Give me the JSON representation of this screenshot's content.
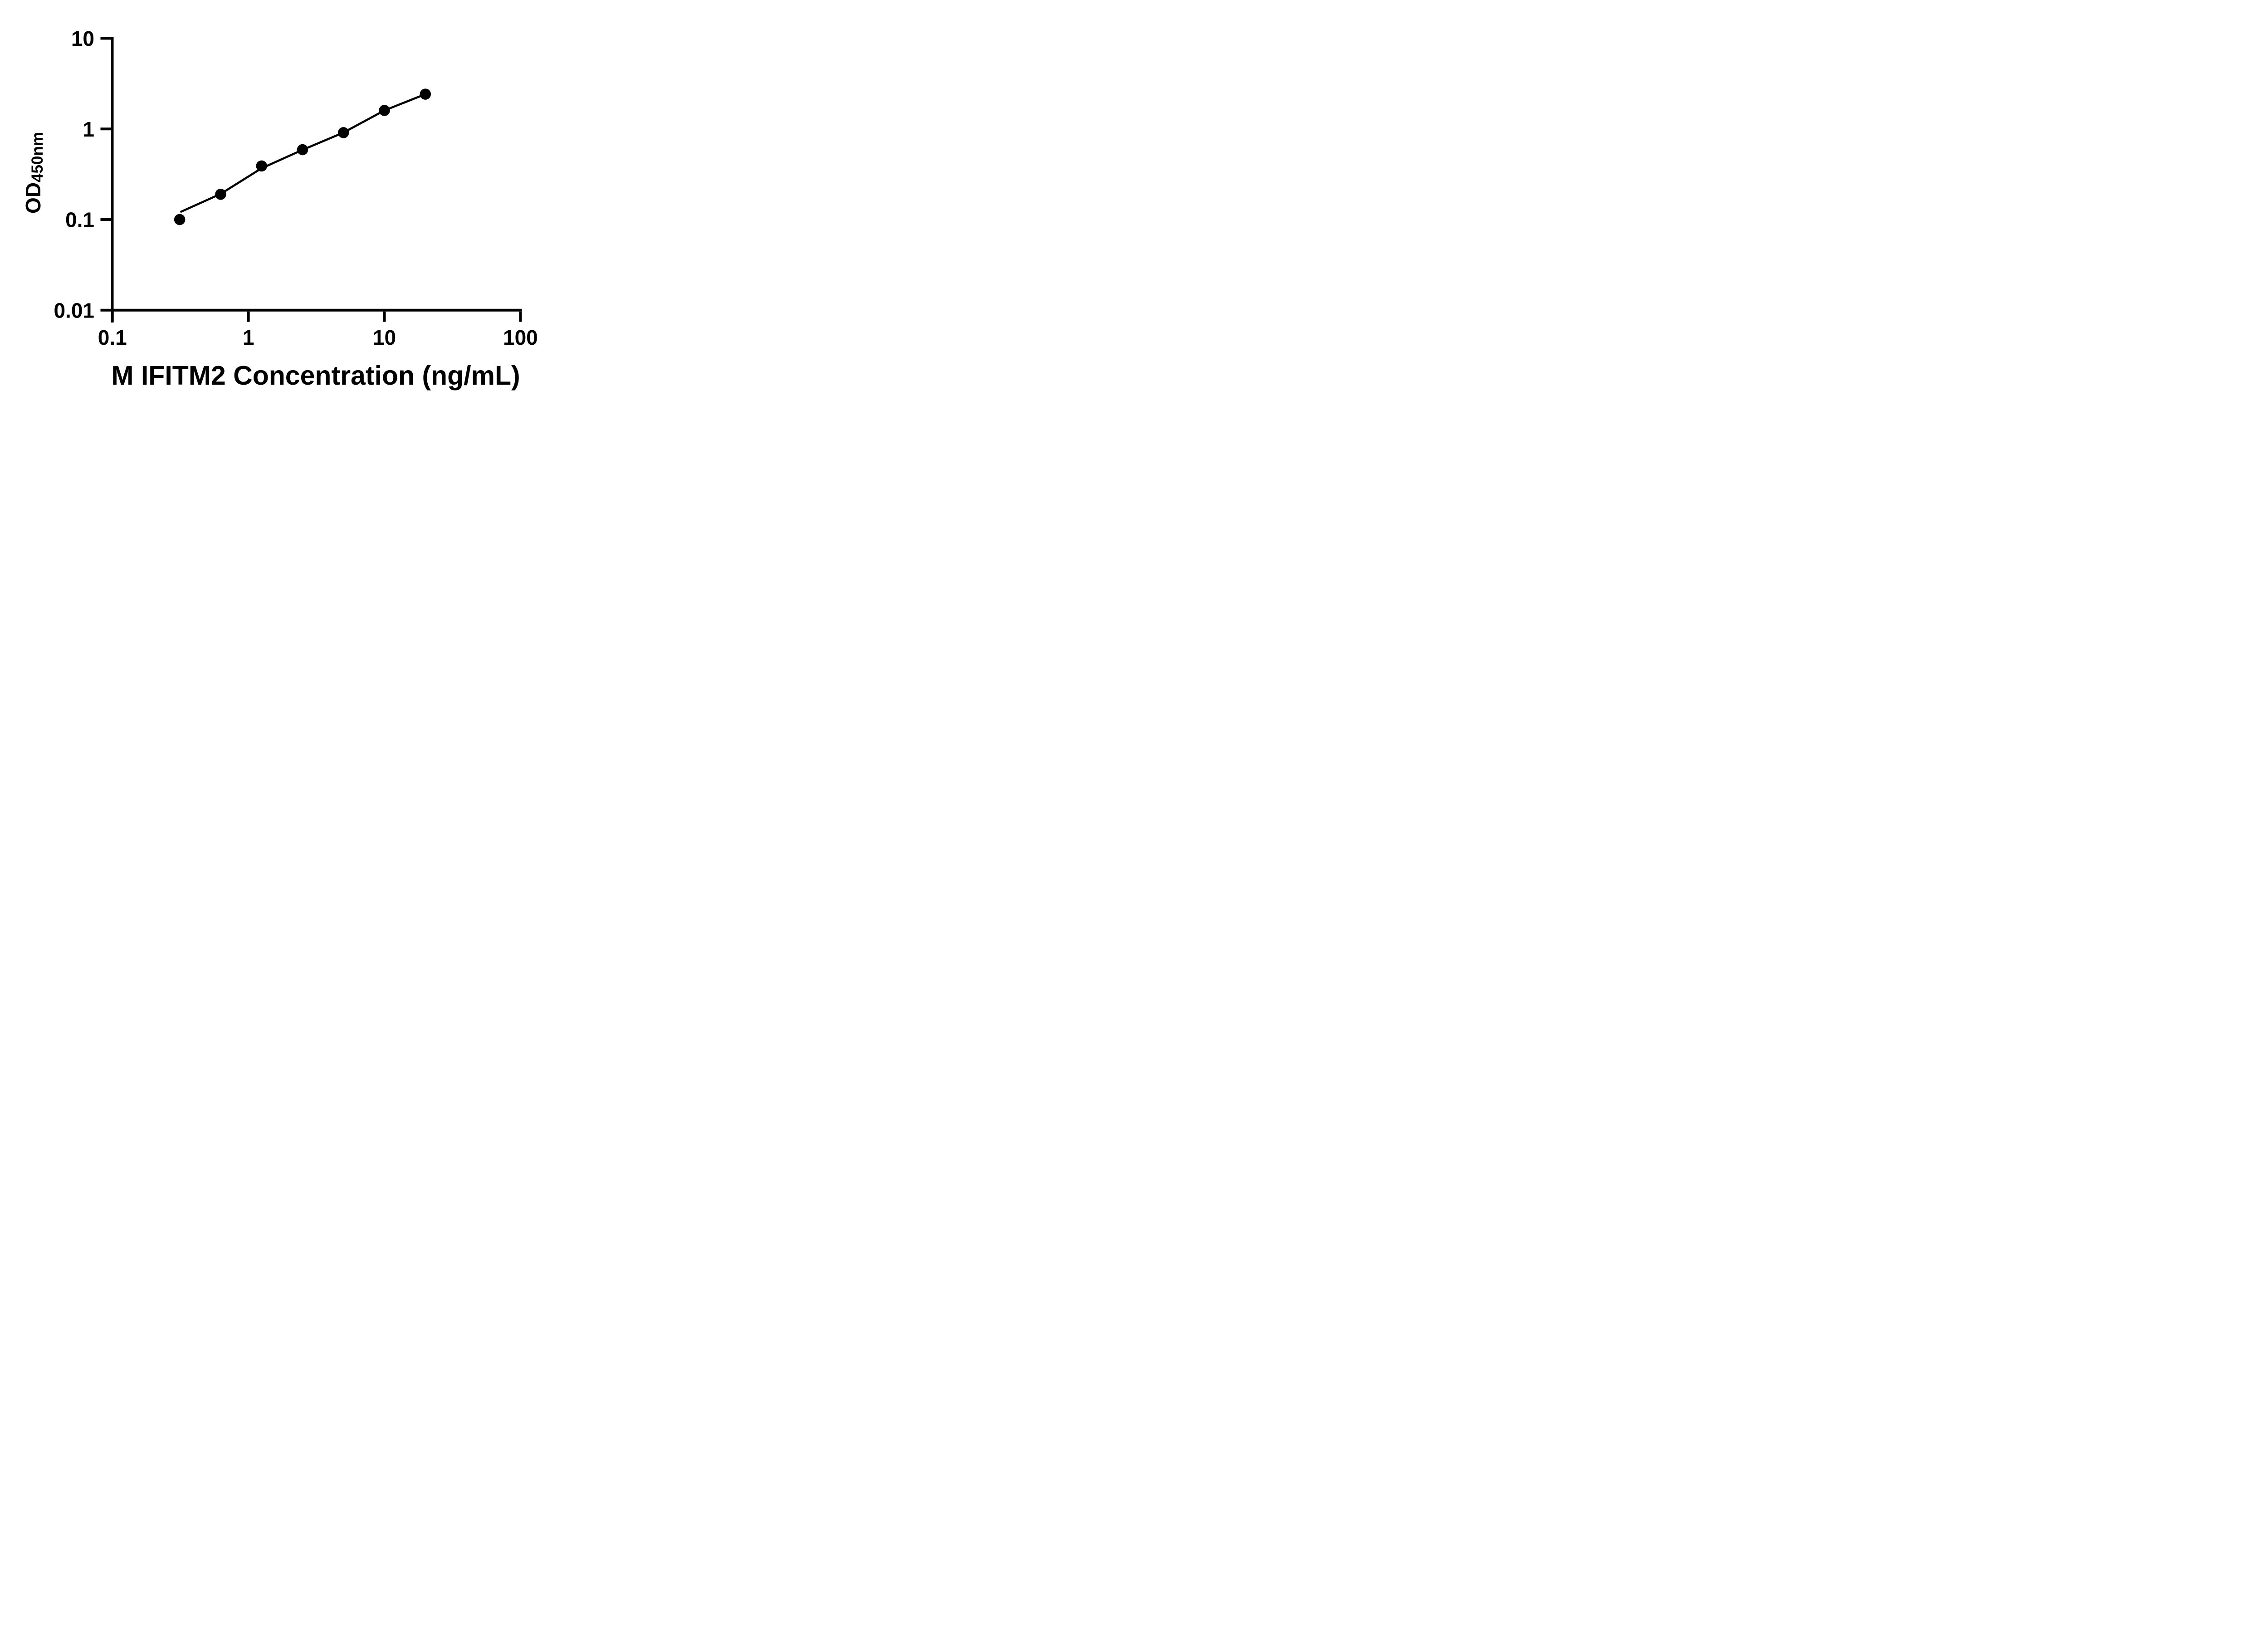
{
  "figure": {
    "background_color": "#ffffff",
    "foreground_color": "#000000"
  },
  "chart_data": {
    "type": "scatter",
    "title": "",
    "xlabel": "M IFITM2 Concentration (ng/mL)",
    "ylabel_main": "OD",
    "ylabel_sub": "450nm",
    "x_scale": "log",
    "y_scale": "log",
    "xlim": [
      0.1,
      100
    ],
    "ylim": [
      0.01,
      10
    ],
    "grid": "off",
    "legend": "none",
    "x_ticks": [
      {
        "value": 0.1,
        "label": "0.1"
      },
      {
        "value": 1,
        "label": "1"
      },
      {
        "value": 10,
        "label": "10"
      },
      {
        "value": 100,
        "label": "100"
      }
    ],
    "y_ticks": [
      {
        "value": 10,
        "label": "10"
      },
      {
        "value": 1,
        "label": "1"
      },
      {
        "value": 0.1,
        "label": "0.1"
      },
      {
        "value": 0.01,
        "label": "0.01"
      }
    ],
    "series": [
      {
        "name": "standard-curve-points",
        "marker": "filled-circle",
        "x": [
          0.3125,
          0.625,
          1.25,
          2.5,
          5,
          10,
          20
        ],
        "y": [
          0.1,
          0.19,
          0.39,
          0.59,
          0.91,
          1.6,
          2.42
        ]
      }
    ],
    "fit_line": {
      "name": "fitted-curve",
      "points": [
        [
          0.316,
          0.121
        ],
        [
          0.625,
          0.192
        ],
        [
          1.25,
          0.368
        ],
        [
          2.5,
          0.588
        ],
        [
          5,
          0.912
        ],
        [
          10,
          1.6
        ],
        [
          20,
          2.42
        ]
      ]
    },
    "marker_color": "#000000",
    "line_color": "#000000",
    "axis_color": "#000000"
  }
}
